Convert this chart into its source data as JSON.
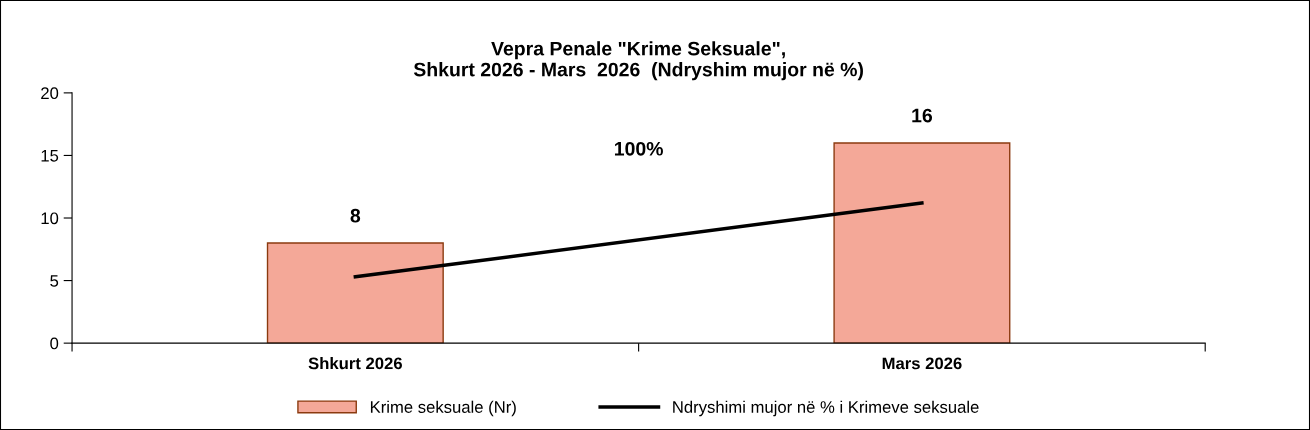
{
  "chart_data": {
    "type": "bar",
    "title": "Vepra Penale \"Krime Seksuale\",\nShkurt 2026 - Mars  2026  (Ndryshim mujor në %)",
    "categories": [
      "Shkurt 2026",
      "Mars 2026"
    ],
    "series": [
      {
        "name": "Krime seksuale (Nr)",
        "color": "#f4a898",
        "values": [
          8,
          16
        ],
        "data_labels": true
      },
      {
        "name": "Ndryshimi mujor në % i Krimeve seksuale",
        "type": "line",
        "color": "#000000",
        "values": [
          5.3,
          11.2
        ]
      }
    ],
    "annotations": [
      "100%"
    ],
    "ylim": [
      0,
      20
    ],
    "yticks": [
      0,
      5,
      10,
      15,
      20
    ],
    "grid": false,
    "legend": "bottom",
    "marker": "none",
    "line_style": "solid"
  }
}
